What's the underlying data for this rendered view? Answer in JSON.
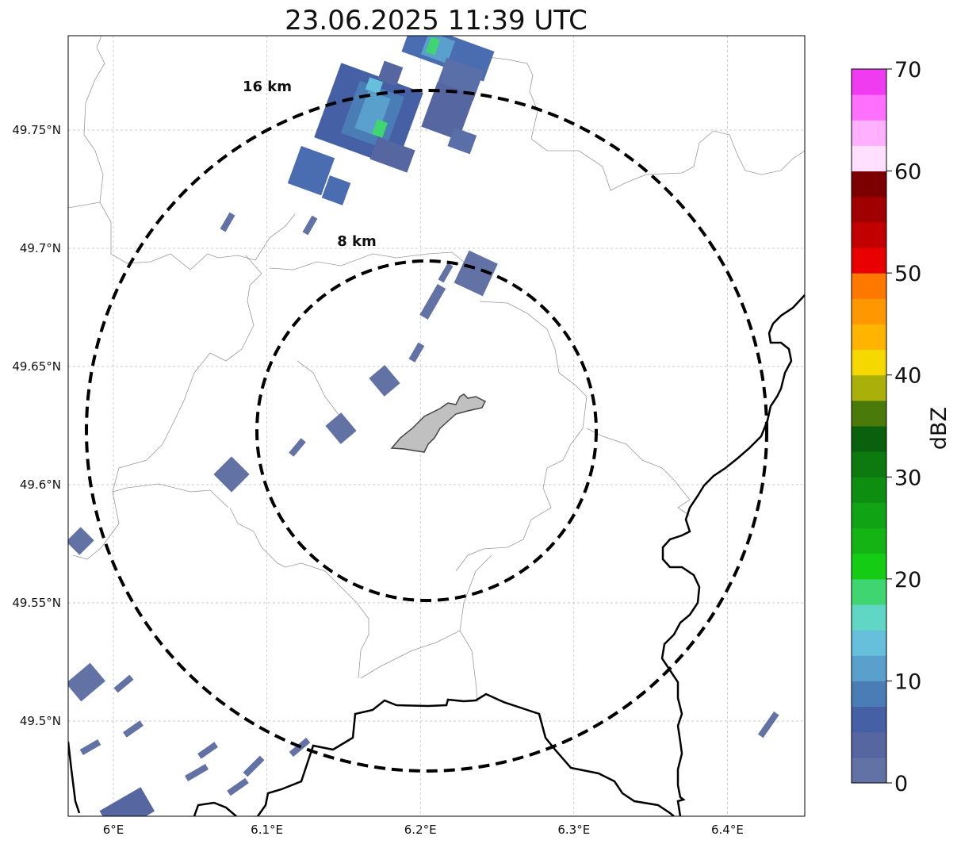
{
  "title": "23.06.2025 11:39 UTC",
  "map": {
    "lon_ticks": [
      {
        "value": 6.0,
        "label": "6°E"
      },
      {
        "value": 6.1,
        "label": "6.1°E"
      },
      {
        "value": 6.2,
        "label": "6.2°E"
      },
      {
        "value": 6.3,
        "label": "6.3°E"
      },
      {
        "value": 6.4,
        "label": "6.4°E"
      }
    ],
    "lat_ticks": [
      {
        "value": 49.75,
        "label": "49.75°N"
      },
      {
        "value": 49.7,
        "label": "49.7°N"
      },
      {
        "value": 49.65,
        "label": "49.65°N"
      },
      {
        "value": 49.6,
        "label": "49.6°N"
      },
      {
        "value": 49.55,
        "label": "49.55°N"
      },
      {
        "value": 49.5,
        "label": "49.5°N"
      }
    ],
    "grid": true,
    "rings": [
      {
        "radius_km": 8,
        "label": "8 km"
      },
      {
        "radius_km": 16,
        "label": "16 km"
      }
    ]
  },
  "colorbar": {
    "label": "dBZ",
    "min": 0,
    "max": 70,
    "ticks": [
      "0",
      "10",
      "20",
      "30",
      "40",
      "50",
      "60",
      "70"
    ],
    "colors": [
      "#6272a4",
      "#5566a0",
      "#4560a4",
      "#4a7cb5",
      "#5aa0cc",
      "#66c0dc",
      "#60d6c4",
      "#3fd672",
      "#14cc14",
      "#14b414",
      "#10a414",
      "#0e8e10",
      "#0c7a0e",
      "#0a600c",
      "#4a7a0a",
      "#aab00a",
      "#f5d800",
      "#ffb400",
      "#ff9800",
      "#ff7800",
      "#e80000",
      "#c20000",
      "#a00000",
      "#7c0000",
      "#ffe0ff",
      "#ffb0ff",
      "#ff70ff",
      "#f03cf0"
    ]
  }
}
